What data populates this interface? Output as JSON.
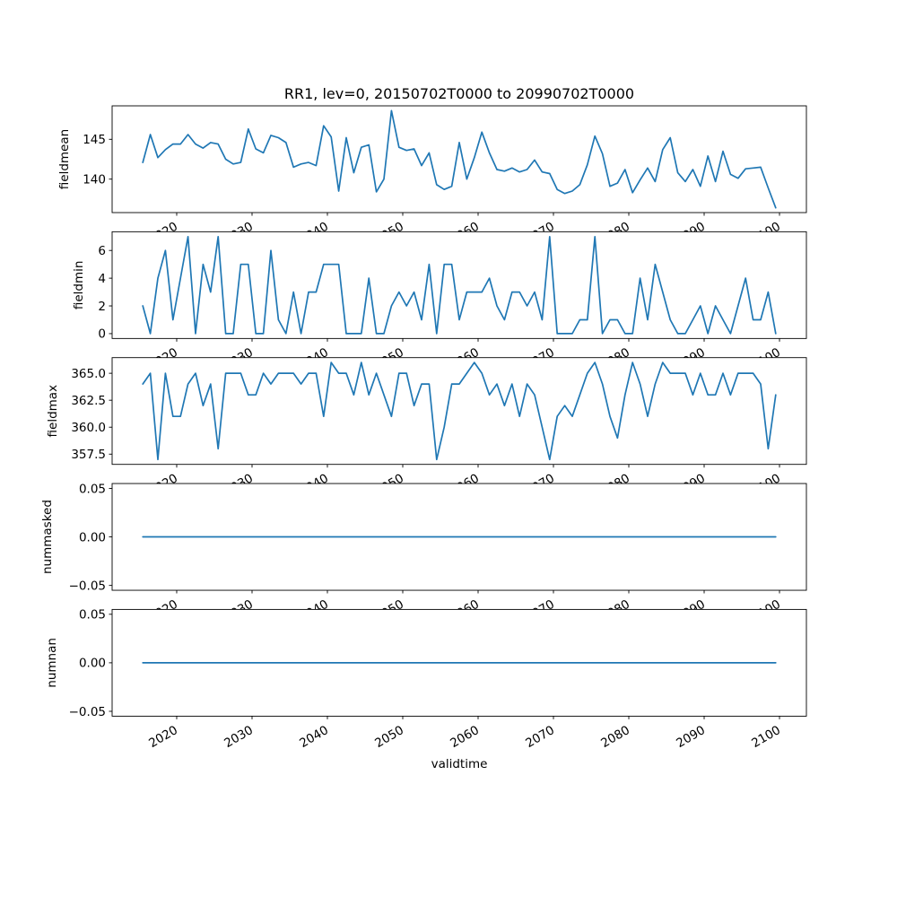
{
  "title": "RR1, lev=0, 20150702T0000 to 20990702T0000",
  "chart_data": {
    "type": "line",
    "title": "RR1, lev=0, 20150702T0000 to 20990702T0000",
    "xlabel": "validtime",
    "line_color": "#1f77b4",
    "background": "#ffffff",
    "spine_color": "#000000",
    "grid": false,
    "legend": "none",
    "xlim": [
      2011.43,
      2103.57
    ],
    "xticks": [
      2020,
      2030,
      2040,
      2050,
      2060,
      2070,
      2080,
      2090,
      2100
    ],
    "xtick_labels": [
      "2020",
      "2030",
      "2040",
      "2050",
      "2060",
      "2070",
      "2080",
      "2090",
      "2100"
    ],
    "xtick_rotation_deg": 30,
    "x_plot_offset": 0.5,
    "years": [
      2015,
      2016,
      2017,
      2018,
      2019,
      2020,
      2021,
      2022,
      2023,
      2024,
      2025,
      2026,
      2027,
      2028,
      2029,
      2030,
      2031,
      2032,
      2033,
      2034,
      2035,
      2036,
      2037,
      2038,
      2039,
      2040,
      2041,
      2042,
      2043,
      2044,
      2045,
      2046,
      2047,
      2048,
      2049,
      2050,
      2051,
      2052,
      2053,
      2054,
      2055,
      2056,
      2057,
      2058,
      2059,
      2060,
      2061,
      2062,
      2063,
      2064,
      2065,
      2066,
      2067,
      2068,
      2069,
      2070,
      2071,
      2072,
      2073,
      2074,
      2075,
      2076,
      2077,
      2078,
      2079,
      2080,
      2081,
      2082,
      2083,
      2084,
      2085,
      2086,
      2087,
      2088,
      2089,
      2090,
      2091,
      2092,
      2093,
      2094,
      2095,
      2096,
      2097,
      2098,
      2099
    ],
    "subplots": [
      {
        "ylabel": "fieldmean",
        "ylim": [
          135.8,
          149.2
        ],
        "yticks": [
          140,
          145
        ],
        "ytick_labels": [
          "140",
          "145"
        ],
        "values": [
          142.1,
          145.6,
          142.7,
          143.7,
          144.4,
          144.4,
          145.6,
          144.4,
          143.9,
          144.6,
          144.4,
          142.5,
          141.9,
          142.1,
          146.3,
          143.8,
          143.3,
          145.5,
          145.2,
          144.6,
          141.5,
          141.9,
          142.1,
          141.7,
          146.7,
          145.3,
          138.5,
          145.2,
          140.8,
          144.0,
          144.3,
          138.4,
          140.0,
          148.6,
          144.0,
          143.6,
          143.8,
          141.7,
          143.3,
          139.3,
          138.7,
          139.1,
          144.6,
          140.0,
          142.7,
          145.9,
          143.3,
          141.2,
          141.0,
          141.4,
          140.9,
          141.2,
          142.4,
          140.9,
          140.7,
          138.7,
          138.2,
          138.5,
          139.3,
          141.8,
          145.4,
          143.2,
          139.1,
          139.5,
          141.2,
          138.3,
          139.9,
          141.4,
          139.7,
          143.7,
          145.2,
          140.8,
          139.7,
          141.2,
          139.1,
          142.9,
          139.7,
          143.5,
          140.6,
          140.1,
          141.3,
          141.4,
          141.5,
          138.9,
          136.4
        ]
      },
      {
        "ylabel": "fieldmin",
        "ylim": [
          -0.35,
          7.35
        ],
        "yticks": [
          0,
          2,
          4,
          6
        ],
        "ytick_labels": [
          "0",
          "2",
          "4",
          "6"
        ],
        "values": [
          2,
          0,
          4,
          6,
          1,
          4,
          7,
          0,
          5,
          3,
          7,
          0,
          0,
          5,
          5,
          0,
          0,
          6,
          1,
          0,
          3,
          0,
          3,
          3,
          5,
          5,
          5,
          0,
          0,
          0,
          4,
          0,
          0,
          2,
          3,
          2,
          3,
          1,
          5,
          0,
          5,
          5,
          1,
          3,
          3,
          3,
          4,
          2,
          1,
          3,
          3,
          2,
          3,
          1,
          7,
          0,
          0,
          0,
          1,
          1,
          7,
          0,
          1,
          1,
          0,
          0,
          4,
          1,
          5,
          3,
          1,
          0,
          0,
          1,
          2,
          0,
          2,
          1,
          0,
          2,
          4,
          1,
          1,
          3,
          0
        ]
      },
      {
        "ylabel": "fieldmax",
        "ylim": [
          356.55,
          366.45
        ],
        "yticks": [
          357.5,
          360.0,
          362.5,
          365.0
        ],
        "ytick_labels": [
          "357.5",
          "360.0",
          "362.5",
          "365.0"
        ],
        "values": [
          364,
          365,
          357,
          365,
          361,
          361,
          364,
          365,
          362,
          364,
          358,
          365,
          365,
          365,
          363,
          363,
          365,
          364,
          365,
          365,
          365,
          364,
          365,
          365,
          361,
          366,
          365,
          365,
          363,
          366,
          363,
          365,
          363,
          361,
          365,
          365,
          362,
          364,
          364,
          357,
          360,
          364,
          364,
          365,
          366,
          365,
          363,
          364,
          362,
          364,
          361,
          364,
          363,
          360,
          357,
          361,
          362,
          361,
          363,
          365,
          366,
          364,
          361,
          359,
          363,
          366,
          364,
          361,
          364,
          366,
          365,
          365,
          365,
          363,
          365,
          363,
          363,
          365,
          363,
          365,
          365,
          365,
          364,
          358,
          363
        ]
      },
      {
        "ylabel": "nummasked",
        "ylim": [
          -0.055,
          0.055
        ],
        "yticks": [
          -0.05,
          0.0,
          0.05
        ],
        "ytick_labels": [
          "−0.05",
          "0.00",
          "0.05"
        ],
        "constant_value": 0.0
      },
      {
        "ylabel": "numnan",
        "ylim": [
          -0.055,
          0.055
        ],
        "yticks": [
          -0.05,
          0.0,
          0.05
        ],
        "ytick_labels": [
          "−0.05",
          "0.00",
          "0.05"
        ],
        "constant_value": 0.0
      }
    ]
  }
}
